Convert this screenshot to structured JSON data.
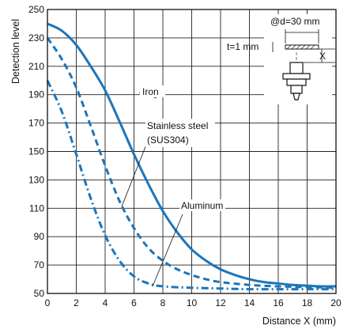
{
  "chart_data": {
    "type": "line",
    "title": "",
    "xlabel": "Distance X (mm)",
    "ylabel": "Detection level",
    "xlim": [
      0,
      20
    ],
    "ylim": [
      50,
      250
    ],
    "xticks": [
      0,
      2,
      4,
      6,
      8,
      10,
      12,
      14,
      16,
      18,
      20
    ],
    "yticks": [
      50,
      70,
      90,
      110,
      130,
      150,
      170,
      190,
      210,
      230,
      250
    ],
    "grid": true,
    "legend": "none",
    "line_color": "#1b75bb",
    "series": [
      {
        "name": "Iron",
        "style": "solid",
        "x": [
          0,
          1,
          2,
          3,
          4,
          5,
          6,
          7,
          8,
          9,
          10,
          11,
          12,
          13,
          14,
          15,
          16,
          17,
          18,
          19,
          20
        ],
        "y": [
          240,
          235,
          225,
          210,
          193,
          171,
          148,
          127,
          108,
          93,
          81,
          73,
          67,
          63,
          60,
          58,
          57,
          56,
          55.5,
          55,
          55
        ]
      },
      {
        "name": "Stainless steel (SUS304)",
        "style": "dashed",
        "x": [
          0,
          1,
          2,
          3,
          4,
          5,
          6,
          7,
          8,
          9,
          10,
          11,
          12,
          14,
          16,
          18,
          20
        ],
        "y": [
          230,
          215,
          195,
          168,
          140,
          115,
          96,
          82,
          73,
          67,
          63,
          60,
          58,
          56,
          55,
          54.5,
          54
        ]
      },
      {
        "name": "Aluminum",
        "style": "dash-dot",
        "x": [
          0,
          1,
          2,
          3,
          4,
          5,
          6,
          7,
          8,
          10,
          12,
          14,
          16,
          18,
          20
        ],
        "y": [
          200,
          178,
          148,
          117,
          91,
          73,
          62,
          57,
          55,
          54,
          53.5,
          53,
          53,
          53,
          53
        ]
      }
    ],
    "annotations": {
      "iron": "Iron",
      "stainless_line1": "Stainless steel",
      "stainless_line2": "(SUS304)",
      "aluminum": "Aluminum"
    },
    "inset": {
      "diameter_label": "@d=30 mm",
      "thickness_label": "t=1 mm",
      "distance_label": "X"
    }
  }
}
